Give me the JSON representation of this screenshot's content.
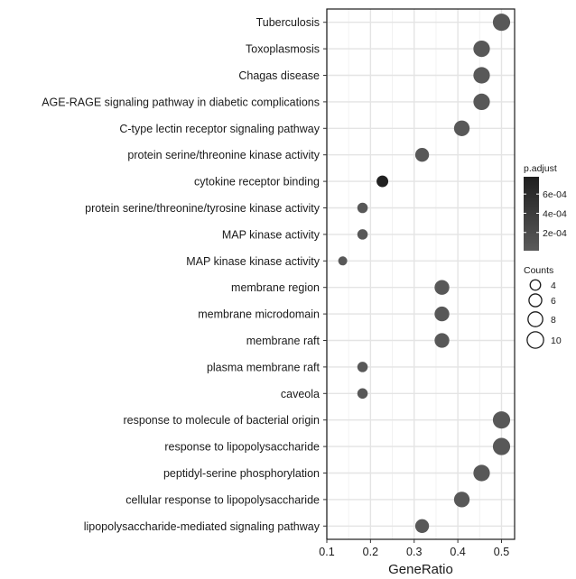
{
  "chart_data": {
    "type": "scatter",
    "title": "",
    "xlabel": "GeneRatio",
    "ylabel": "",
    "xlim": [
      0.1,
      0.53
    ],
    "x_ticks": [
      0.1,
      0.2,
      0.3,
      0.4,
      0.5
    ],
    "x_tick_labels": [
      "0.1",
      "0.2",
      "0.3",
      "0.4",
      "0.5"
    ],
    "grid": true,
    "legend_position": "right",
    "categories": [
      "Tuberculosis",
      "Toxoplasmosis",
      "Chagas disease",
      "AGE-RAGE signaling pathway in diabetic complications",
      "C-type lectin receptor signaling pathway",
      "protein serine/threonine kinase activity",
      "cytokine receptor binding",
      "protein serine/threonine/tyrosine kinase activity",
      "MAP kinase activity",
      "MAP kinase kinase activity",
      "membrane region",
      "membrane microdomain",
      "membrane raft",
      "plasma membrane raft",
      "caveola",
      "response to molecule of bacterial origin",
      "response to lipopolysaccharide",
      "peptidyl-serine phosphorylation",
      "cellular response to lipopolysaccharide",
      "lipopolysaccharide-mediated signaling pathway"
    ],
    "gene_ratio": [
      0.5,
      0.4545,
      0.4545,
      0.4545,
      0.4091,
      0.3182,
      0.2273,
      0.1818,
      0.1818,
      0.1364,
      0.3636,
      0.3636,
      0.3636,
      0.1818,
      0.1818,
      0.5,
      0.5,
      0.4545,
      0.4091,
      0.3182
    ],
    "counts": [
      11,
      10,
      10,
      10,
      9,
      7,
      5,
      4,
      4,
      3,
      8,
      8,
      8,
      4,
      4,
      11,
      11,
      10,
      9,
      7
    ],
    "p_adjust": [
      3e-05,
      3e-05,
      3e-05,
      3e-05,
      3e-05,
      3e-05,
      0.00075,
      3e-05,
      3e-05,
      3e-05,
      3e-05,
      3e-05,
      3e-05,
      3e-05,
      3e-05,
      3e-05,
      3e-05,
      3e-05,
      3e-05,
      3e-05
    ],
    "legend": {
      "color": {
        "title": "p.adjust",
        "breaks": [
          0.0006,
          0.0004,
          0.0002
        ],
        "labels": [
          "6e-04",
          "4e-04",
          "2e-04"
        ],
        "range": [
          1e-05,
          0.00078
        ],
        "low_color": "#5a5a5a",
        "high_color": "#1f1f1f"
      },
      "size": {
        "title": "Counts",
        "breaks": [
          4,
          6,
          8,
          10
        ],
        "labels": [
          "4",
          "6",
          "8",
          "10"
        ]
      }
    }
  }
}
